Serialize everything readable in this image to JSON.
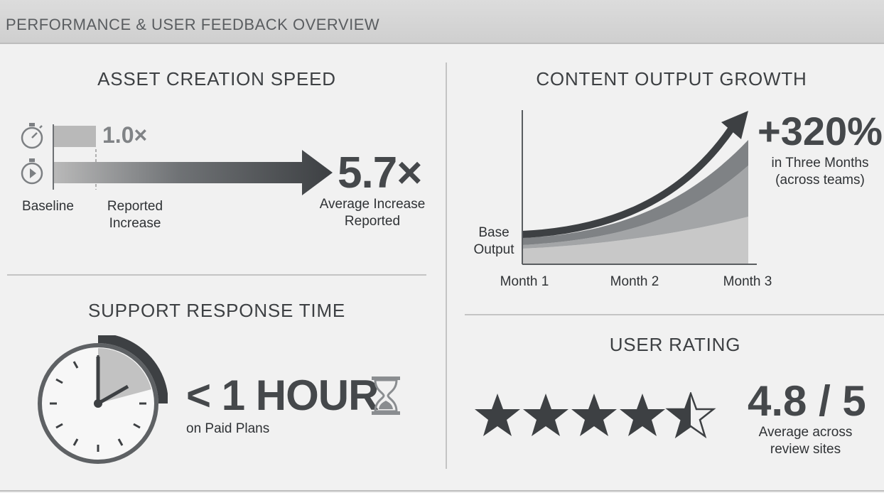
{
  "header": {
    "title": "PERFORMANCE & USER FEEDBACK OVERVIEW"
  },
  "asset_speed": {
    "title": "ASSET CREATION SPEED",
    "baseline_value": "1.0×",
    "result_value": "5.7×",
    "baseline_label": "Baseline",
    "increase_label_1": "Reported",
    "increase_label_2": "Increase",
    "result_label_1": "Average Increase",
    "result_label_2": "Reported"
  },
  "content_growth": {
    "title": "CONTENT OUTPUT GROWTH",
    "headline": "+320%",
    "sub_1": "in Three Months",
    "sub_2": "(across teams)",
    "base_label_1": "Base",
    "base_label_2": "Output",
    "x_labels": [
      "Month 1",
      "Month 2",
      "Month 3"
    ]
  },
  "support": {
    "title": "SUPPORT RESPONSE TIME",
    "headline": "< 1 HOUR",
    "sub": "on Paid Plans"
  },
  "rating": {
    "title": "USER RATING",
    "value": "4.8 / 5",
    "score": 4.8,
    "max": 5,
    "sub_1": "Average across",
    "sub_2": "review sites"
  },
  "icons": [
    "stopwatch-icon",
    "hourglass-icon",
    "clock-icon",
    "star-icon"
  ]
}
